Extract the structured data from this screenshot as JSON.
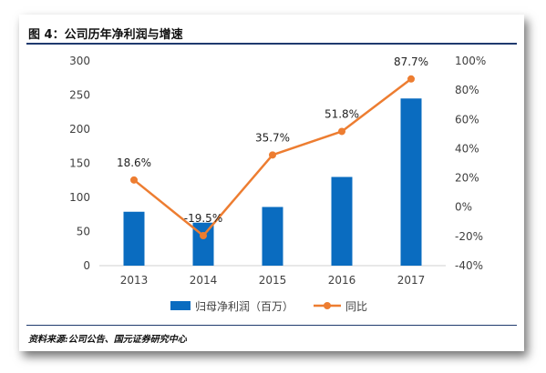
{
  "figure": {
    "title": "图 4：公司历年净利润与增速",
    "source": "资料来源:公司公告、国元证券研究中心"
  },
  "colors": {
    "bar": "#0a6cc0",
    "line": "#ed7d31",
    "rule": "#1f3a6e",
    "text": "#404040"
  },
  "chart_data": {
    "type": "bar",
    "categories": [
      "2013",
      "2014",
      "2015",
      "2016",
      "2017"
    ],
    "series": [
      {
        "name": "归母净利润（百万）",
        "type": "bar",
        "axis": "left",
        "values": [
          79,
          63,
          86,
          130,
          245
        ]
      },
      {
        "name": "同比",
        "type": "line",
        "axis": "right",
        "values": [
          18.6,
          -19.5,
          35.7,
          51.8,
          87.7
        ],
        "labels": [
          "18.6%",
          "-19.5%",
          "35.7%",
          "51.8%",
          "87.7%"
        ]
      }
    ],
    "y_left": {
      "ylim": [
        0,
        300
      ],
      "ticks": [
        "0",
        "50",
        "100",
        "150",
        "200",
        "250",
        "300"
      ]
    },
    "y_right": {
      "ylim": [
        -40,
        100
      ],
      "ticks": [
        "-40%",
        "-20%",
        "0%",
        "20%",
        "40%",
        "60%",
        "80%",
        "100%"
      ]
    },
    "grid": false,
    "legend": "bottom"
  }
}
